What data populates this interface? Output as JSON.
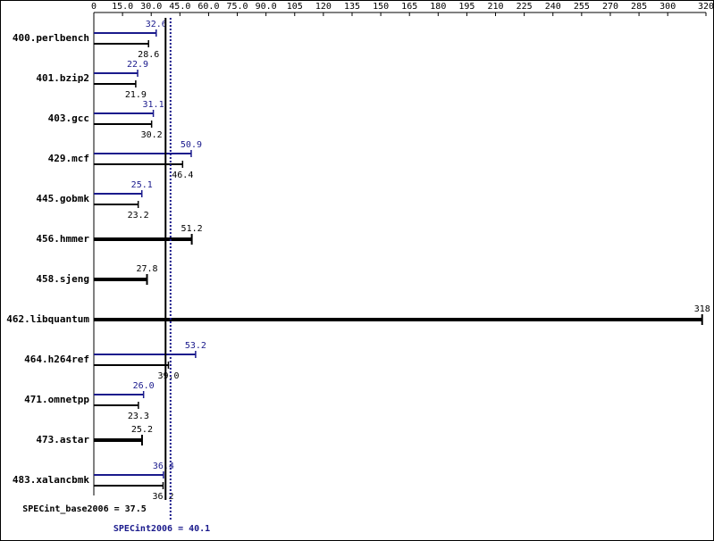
{
  "chart_data": {
    "type": "bar",
    "orientation": "horizontal",
    "categories": [
      "400.perlbench",
      "401.bzip2",
      "403.gcc",
      "429.mcf",
      "445.gobmk",
      "456.hmmer",
      "458.sjeng",
      "462.libquantum",
      "464.h264ref",
      "471.omnetpp",
      "473.astar",
      "483.xalancbmk"
    ],
    "series": [
      {
        "name": "peak",
        "color": "#1a1a8c",
        "values": [
          32.6,
          22.9,
          31.1,
          50.9,
          25.1,
          null,
          null,
          null,
          53.2,
          26.0,
          null,
          36.4
        ],
        "value_labels": [
          "32.6",
          "22.9",
          "31.1",
          "50.9",
          "25.1",
          null,
          null,
          null,
          "53.2",
          "26.0",
          null,
          "36.4"
        ]
      },
      {
        "name": "base",
        "color": "#000000",
        "values": [
          28.6,
          21.9,
          30.2,
          46.4,
          23.2,
          51.2,
          27.8,
          318,
          39.0,
          23.3,
          25.2,
          36.2
        ],
        "value_labels": [
          "28.6",
          "21.9",
          "30.2",
          "46.4",
          "23.2",
          "51.2",
          "27.8",
          "318",
          "39.0",
          "23.3",
          "25.2",
          "36.2"
        ]
      }
    ],
    "xlim": [
      0,
      320
    ],
    "xticks": [
      0,
      {
        "value": 15,
        "label": "15.0"
      },
      {
        "value": 30,
        "label": "30.0"
      },
      {
        "value": 45,
        "label": "45.0"
      },
      {
        "value": 60,
        "label": "60.0"
      },
      {
        "value": 75,
        "label": "75.0"
      },
      {
        "value": 90,
        "label": "90.0"
      },
      105,
      120,
      135,
      150,
      165,
      180,
      195,
      210,
      225,
      240,
      255,
      270,
      285,
      300,
      320
    ],
    "reference_lines": [
      {
        "label": "SPECint_base2006 = 37.5",
        "value": 37.5,
        "color": "#000000",
        "style": "solid"
      },
      {
        "label": "SPECint2006 = 40.1",
        "value": 40.1,
        "color": "#1a1a8c",
        "style": "dotted"
      }
    ]
  }
}
